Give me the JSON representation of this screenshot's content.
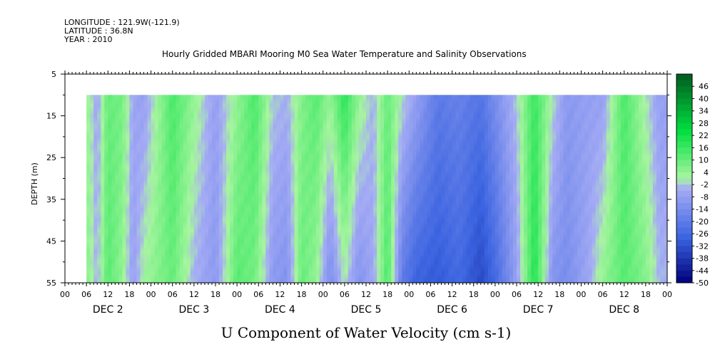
{
  "header": {
    "longitude": "LONGITUDE : 121.9W(-121.9)",
    "latitude": "LATITUDE : 36.8N",
    "year": "YEAR : 2010"
  },
  "chart_data": {
    "type": "heatmap",
    "title": "Hourly Gridded MBARI Mooring M0 Sea Water Temperature and Salinity Observations",
    "xlabel": "U Component of Water Velocity (cm s-1)",
    "ylabel": "DEPTH (m)",
    "ylim": [
      55,
      5
    ],
    "y_ticks": [
      "5",
      "15",
      "25",
      "35",
      "45",
      "55"
    ],
    "x_tick_labels": [
      "00",
      "06",
      "12",
      "18",
      "00",
      "06",
      "12",
      "18",
      "00",
      "06",
      "12",
      "18",
      "00",
      "06",
      "12",
      "18",
      "00",
      "06",
      "12",
      "18",
      "00",
      "06",
      "12",
      "18",
      "00",
      "06",
      "12",
      "18",
      "00"
    ],
    "day_labels": [
      "DEC  2",
      "DEC  3",
      "DEC  4",
      "DEC  5",
      "DEC  6",
      "DEC  7",
      "DEC  8"
    ],
    "data_depth_range": [
      10,
      55
    ],
    "data_start_hour": 6,
    "colorbar": {
      "labels": [
        "46",
        "40",
        "34",
        "28",
        "22",
        "16",
        "10",
        "4",
        "-2",
        "-8",
        "-14",
        "-20",
        "-26",
        "-32",
        "-38",
        "-44",
        "-50"
      ],
      "range": [
        -50,
        52
      ],
      "colors": {
        "dark_blue": "#00007a",
        "mid_blue": "#3a63e0",
        "light_blue": "#a6acf5",
        "light_green": "#a8f5a0",
        "mid_green": "#00e040",
        "dark_green": "#005a20"
      }
    },
    "u_profile_hourly": [
      {
        "hour": 6,
        "surface": 4,
        "bottom": 6
      },
      {
        "hour": 9,
        "surface": -6,
        "bottom": -4
      },
      {
        "hour": 12,
        "surface": 10,
        "bottom": 12
      },
      {
        "hour": 16,
        "surface": 8,
        "bottom": 4
      },
      {
        "hour": 19,
        "surface": -6,
        "bottom": -8
      },
      {
        "hour": 22,
        "surface": -8,
        "bottom": 2
      },
      {
        "hour": 30,
        "surface": 14,
        "bottom": 10
      },
      {
        "hour": 36,
        "surface": 4,
        "bottom": -4
      },
      {
        "hour": 42,
        "surface": -8,
        "bottom": -10
      },
      {
        "hour": 48,
        "surface": 4,
        "bottom": 12
      },
      {
        "hour": 53,
        "surface": 14,
        "bottom": 8
      },
      {
        "hour": 58,
        "surface": -2,
        "bottom": -10
      },
      {
        "hour": 62,
        "surface": -4,
        "bottom": -12
      },
      {
        "hour": 66,
        "surface": 6,
        "bottom": 10
      },
      {
        "hour": 70,
        "surface": 12,
        "bottom": 4
      },
      {
        "hour": 74,
        "surface": 4,
        "bottom": -14
      },
      {
        "hour": 78,
        "surface": 18,
        "bottom": 0
      },
      {
        "hour": 82,
        "surface": 4,
        "bottom": -12
      },
      {
        "hour": 86,
        "surface": -4,
        "bottom": -6
      },
      {
        "hour": 90,
        "surface": 10,
        "bottom": 14
      },
      {
        "hour": 94,
        "surface": 0,
        "bottom": -20
      },
      {
        "hour": 98,
        "surface": -8,
        "bottom": -28
      },
      {
        "hour": 104,
        "surface": -20,
        "bottom": -30
      },
      {
        "hour": 110,
        "surface": -18,
        "bottom": -26
      },
      {
        "hour": 116,
        "surface": -22,
        "bottom": -34
      },
      {
        "hour": 120,
        "surface": -14,
        "bottom": -26
      },
      {
        "hour": 126,
        "surface": -2,
        "bottom": -8
      },
      {
        "hour": 131,
        "surface": 16,
        "bottom": 20
      },
      {
        "hour": 136,
        "surface": 0,
        "bottom": -12
      },
      {
        "hour": 140,
        "surface": -10,
        "bottom": -14
      },
      {
        "hour": 146,
        "surface": -8,
        "bottom": -6
      },
      {
        "hour": 150,
        "surface": -8,
        "bottom": 4
      },
      {
        "hour": 156,
        "surface": 14,
        "bottom": 12
      },
      {
        "hour": 162,
        "surface": 0,
        "bottom": 6
      },
      {
        "hour": 166,
        "surface": -8,
        "bottom": -4
      }
    ]
  }
}
